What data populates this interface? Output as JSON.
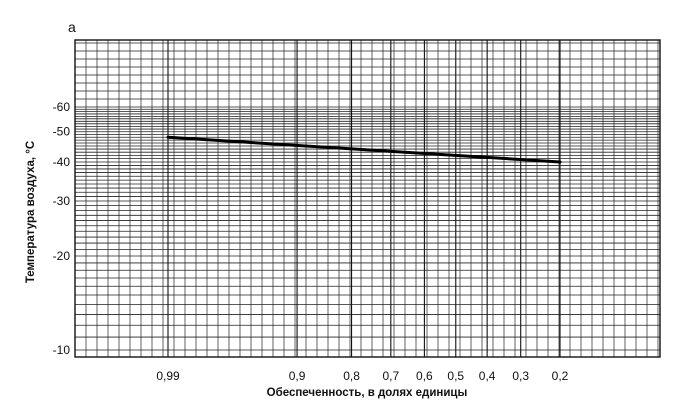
{
  "chart_data": {
    "type": "line",
    "panel_label": "а",
    "xlabel": "Обеспеченность, в долях единицы",
    "ylabel": "Температура воздуха, °С",
    "x_scale": "probability",
    "y_scale": "log",
    "grid": true,
    "x_ticks": [
      {
        "value": 0.99,
        "label": "0,99"
      },
      {
        "value": 0.9,
        "label": "0,9"
      },
      {
        "value": 0.8,
        "label": "0,8"
      },
      {
        "value": 0.7,
        "label": "0,7"
      },
      {
        "value": 0.6,
        "label": "0,6"
      },
      {
        "value": 0.5,
        "label": "0,5"
      },
      {
        "value": 0.4,
        "label": "0,4"
      },
      {
        "value": 0.3,
        "label": "0,3"
      },
      {
        "value": 0.2,
        "label": "0,2"
      }
    ],
    "y_ticks": [
      {
        "value": 60,
        "label": "-60"
      },
      {
        "value": 50,
        "label": "-50"
      },
      {
        "value": 40,
        "label": "-40"
      },
      {
        "value": 30,
        "label": "-30"
      },
      {
        "value": 20,
        "label": "-20"
      },
      {
        "value": 10,
        "label": "-10"
      }
    ],
    "series": [
      {
        "values": [
          {
            "x": 0.99,
            "y": -48
          },
          {
            "x": 0.2,
            "y": -40
          }
        ]
      }
    ]
  }
}
